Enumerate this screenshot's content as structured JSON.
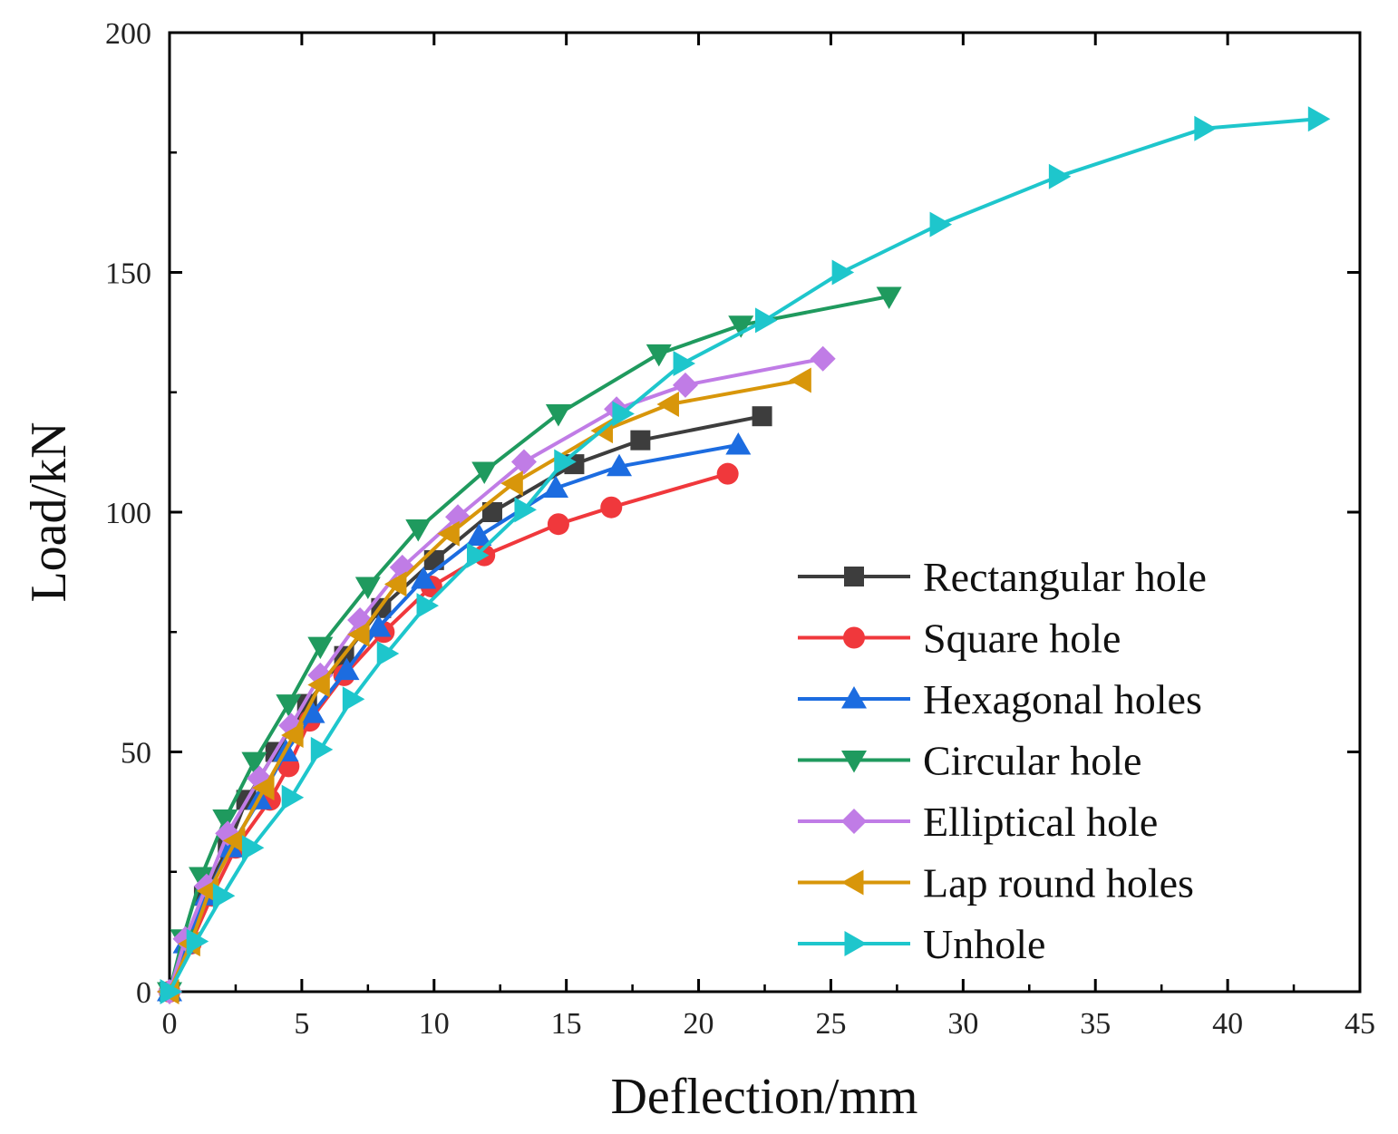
{
  "chart_data": {
    "type": "line",
    "xlabel": "Deflection/mm",
    "ylabel": "Load/kN",
    "xlim": [
      0,
      45
    ],
    "ylim": [
      0,
      200
    ],
    "xticks": [
      0,
      5,
      10,
      15,
      20,
      25,
      30,
      35,
      40,
      45
    ],
    "yticks": [
      0,
      50,
      100,
      150,
      200
    ],
    "grid": false,
    "legend_position": "bottom-right",
    "series": [
      {
        "name": "Rectangular hole",
        "color": "#3d3d3d",
        "marker": "square",
        "points": [
          [
            0,
            0
          ],
          [
            0.7,
            10
          ],
          [
            1.3,
            20
          ],
          [
            2.2,
            30
          ],
          [
            2.9,
            40
          ],
          [
            4,
            50
          ],
          [
            5.2,
            60
          ],
          [
            6.6,
            70
          ],
          [
            8,
            80
          ],
          [
            10,
            90
          ],
          [
            12.2,
            100
          ],
          [
            15.3,
            110
          ],
          [
            17.8,
            115
          ],
          [
            22.4,
            120
          ]
        ]
      },
      {
        "name": "Square hole",
        "color": "#f0383c",
        "marker": "circle",
        "points": [
          [
            0,
            0
          ],
          [
            0.8,
            10
          ],
          [
            1.6,
            20
          ],
          [
            2.5,
            30
          ],
          [
            3.8,
            40
          ],
          [
            4.5,
            47
          ],
          [
            5.3,
            56.5
          ],
          [
            6.6,
            66
          ],
          [
            8.1,
            75
          ],
          [
            9.9,
            84.5
          ],
          [
            11.9,
            91
          ],
          [
            14.7,
            97.5
          ],
          [
            16.7,
            101
          ],
          [
            21.1,
            108
          ]
        ]
      },
      {
        "name": "Hexagonal holes",
        "color": "#1c6ce0",
        "marker": "triangle-up",
        "points": [
          [
            0,
            0
          ],
          [
            0.6,
            10
          ],
          [
            1.4,
            20
          ],
          [
            2.3,
            30
          ],
          [
            3.4,
            40
          ],
          [
            4.4,
            50
          ],
          [
            5.4,
            58
          ],
          [
            6.7,
            67
          ],
          [
            7.9,
            76
          ],
          [
            9.6,
            86
          ],
          [
            11.7,
            95
          ],
          [
            14.6,
            105
          ],
          [
            17,
            109.5
          ],
          [
            21.5,
            114
          ]
        ]
      },
      {
        "name": "Circular hole",
        "color": "#1f9a5e",
        "marker": "triangle-down",
        "points": [
          [
            0,
            0
          ],
          [
            0.5,
            11
          ],
          [
            1.2,
            24
          ],
          [
            2.1,
            36
          ],
          [
            3.2,
            48
          ],
          [
            4.5,
            60
          ],
          [
            5.7,
            72
          ],
          [
            7.5,
            84.5
          ],
          [
            9.4,
            96.5
          ],
          [
            11.9,
            108.5
          ],
          [
            14.7,
            120.5
          ],
          [
            18.5,
            133
          ],
          [
            21.6,
            139
          ],
          [
            27.2,
            145
          ]
        ]
      },
      {
        "name": "Elliptical hole",
        "color": "#c07ce6",
        "marker": "diamond",
        "points": [
          [
            0,
            0
          ],
          [
            0.6,
            11
          ],
          [
            1.4,
            22
          ],
          [
            2.2,
            33
          ],
          [
            3.4,
            44.5
          ],
          [
            4.6,
            55.5
          ],
          [
            5.7,
            66
          ],
          [
            7.2,
            77.5
          ],
          [
            8.8,
            88.5
          ],
          [
            10.9,
            99
          ],
          [
            13.4,
            110.5
          ],
          [
            16.9,
            121.5
          ],
          [
            19.5,
            126.5
          ],
          [
            24.7,
            132
          ]
        ]
      },
      {
        "name": "Lap round holes",
        "color": "#d8960a",
        "marker": "triangle-left",
        "points": [
          [
            0,
            0
          ],
          [
            0.8,
            10
          ],
          [
            1.5,
            21
          ],
          [
            2.5,
            31.5
          ],
          [
            3.6,
            42.5
          ],
          [
            4.7,
            53.5
          ],
          [
            5.7,
            64
          ],
          [
            7.2,
            74.5
          ],
          [
            8.6,
            85
          ],
          [
            10.6,
            95.5
          ],
          [
            13,
            106
          ],
          [
            16.4,
            117
          ],
          [
            18.9,
            122.5
          ],
          [
            23.9,
            127.5
          ]
        ]
      },
      {
        "name": "Unhole",
        "color": "#1ec6cc",
        "marker": "triangle-right",
        "points": [
          [
            0,
            0
          ],
          [
            1,
            10.5
          ],
          [
            2,
            20
          ],
          [
            3.1,
            30
          ],
          [
            4.6,
            40.5
          ],
          [
            5.7,
            50.5
          ],
          [
            6.9,
            61
          ],
          [
            8.2,
            70.5
          ],
          [
            9.7,
            80.5
          ],
          [
            11.6,
            91
          ],
          [
            13.4,
            100.5
          ],
          [
            14.9,
            110.5
          ],
          [
            17.1,
            120.5
          ],
          [
            19.4,
            131
          ],
          [
            22.5,
            140
          ],
          [
            25.4,
            150
          ],
          [
            29.1,
            160
          ],
          [
            33.6,
            170
          ],
          [
            39.1,
            180
          ],
          [
            43.4,
            182
          ]
        ]
      }
    ]
  }
}
